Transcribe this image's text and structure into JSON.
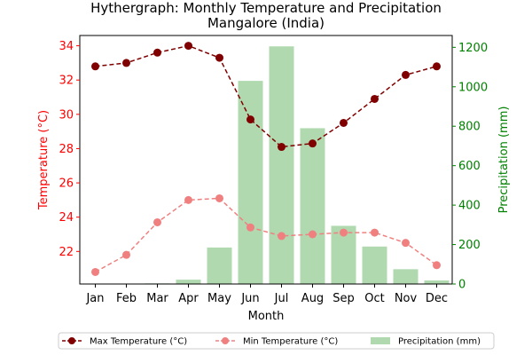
{
  "chart_data": {
    "type": "bar+line",
    "title_line1": "Hythergraph: Monthly Temperature and Precipitation",
    "title_line2": "Mangalore (India)",
    "xlabel": "Month",
    "ylabel_left": "Temperature (°C)",
    "ylabel_right": "Precipitation (mm)",
    "categories": [
      "Jan",
      "Feb",
      "Mar",
      "Apr",
      "May",
      "Jun",
      "Jul",
      "Aug",
      "Sep",
      "Oct",
      "Nov",
      "Dec"
    ],
    "left_ylim": [
      20.1,
      34.6
    ],
    "left_ticks": [
      22,
      24,
      26,
      28,
      30,
      32,
      34
    ],
    "right_ylim": [
      0,
      1260
    ],
    "right_ticks": [
      0,
      200,
      400,
      600,
      800,
      1000,
      1200
    ],
    "series": [
      {
        "name": "Max Temperature (°C)",
        "axis": "left",
        "kind": "line",
        "style": "dashed",
        "color": "#800000",
        "values": [
          32.8,
          33.0,
          33.6,
          34.0,
          33.3,
          29.7,
          28.1,
          28.3,
          29.5,
          30.9,
          32.3,
          32.8
        ]
      },
      {
        "name": "Min Temperature (°C)",
        "axis": "left",
        "kind": "line",
        "style": "dashed",
        "color": "#f08080",
        "values": [
          20.8,
          21.8,
          23.7,
          25.0,
          25.1,
          23.4,
          22.9,
          23.0,
          23.1,
          23.1,
          22.5,
          21.2
        ]
      },
      {
        "name": "Precipitation (mm)",
        "axis": "right",
        "kind": "bar",
        "color": "#b0d9b0",
        "values": [
          2,
          1,
          3,
          22,
          185,
          1030,
          1205,
          790,
          295,
          190,
          75,
          18
        ]
      }
    ],
    "legend": {
      "placement": "bottom-center"
    },
    "grid": false,
    "colors": {
      "left_axis": "#ff0000",
      "right_axis": "#008000"
    }
  }
}
